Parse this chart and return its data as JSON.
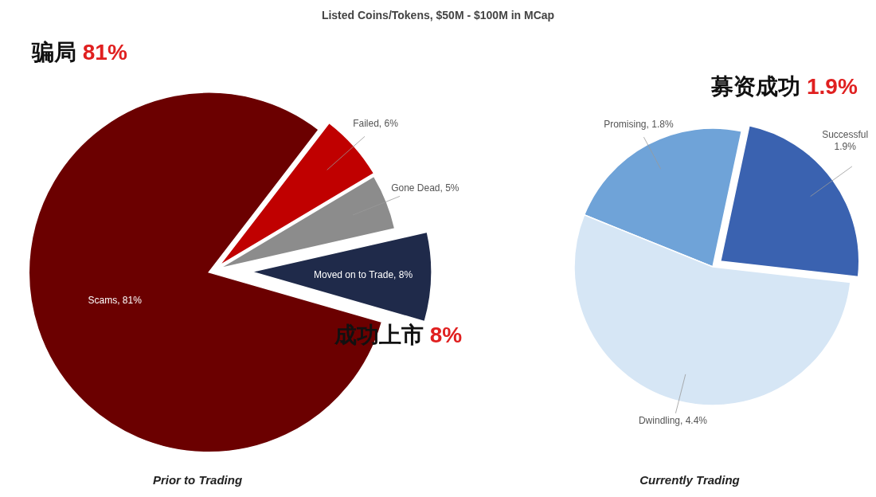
{
  "chart_data": [
    {
      "type": "pie",
      "title": "Listed Coins/Tokens, $50M - $100M in MCap",
      "xlabel": "Prior to Trading",
      "categories": [
        "Scams",
        "Failed",
        "Gone Dead",
        "Moved on to Trade"
      ],
      "values": [
        81,
        6,
        5,
        8
      ],
      "value_labels": [
        "81%",
        "6%",
        "5%",
        "8%"
      ],
      "colors": [
        "#6b0000",
        "#c00000",
        "#8c8c8c",
        "#1f2a4a"
      ],
      "annotations": [
        "骗局 81%",
        "成功上市 8%"
      ]
    },
    {
      "type": "pie",
      "xlabel": "Currently Trading",
      "categories": [
        "Promising",
        "Successful",
        "Dwindling"
      ],
      "values": [
        1.8,
        1.9,
        4.4
      ],
      "value_labels": [
        "1.8%",
        "1.9%",
        "4.4%"
      ],
      "colors": [
        "#6fa3d8",
        "#3a62b0",
        "#d6e6f5"
      ],
      "annotations": [
        "募资成功 1.9%"
      ]
    }
  ]
}
